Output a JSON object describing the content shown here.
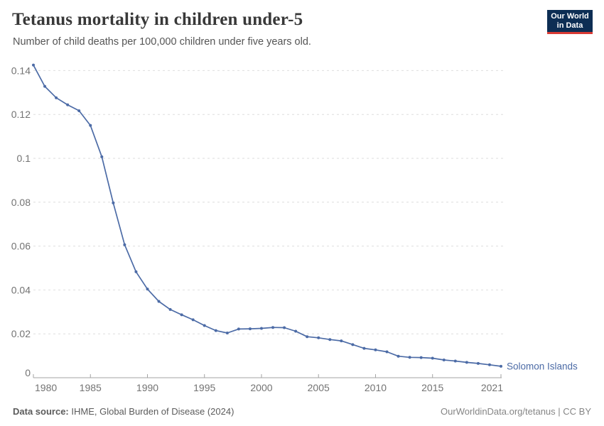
{
  "header": {
    "title": "Tetanus mortality in children under-5",
    "subtitle": "Number of child deaths per 100,000 children under five years old.",
    "logo": {
      "line1": "Our World",
      "line2": "in Data",
      "bg_color": "#0d2e54",
      "accent_color": "#d93a34"
    }
  },
  "chart_data": {
    "type": "line",
    "title": "Tetanus mortality in children under-5",
    "subtitle": "Number of child deaths per 100,000 children under five years old.",
    "xlabel": "",
    "ylabel": "",
    "xlim": [
      1980,
      2021
    ],
    "ylim": [
      0,
      0.145
    ],
    "grid": "horizontal-dashed",
    "legend_position": "end-of-line-label",
    "line_color": "#4c6ba6",
    "grid_color": "#dedede",
    "axis_color": "#a3a3a3",
    "tick_label_color": "#737373",
    "x_ticks": [
      {
        "value": 1980,
        "label": "1980"
      },
      {
        "value": 1985,
        "label": "1985"
      },
      {
        "value": 1990,
        "label": "1990"
      },
      {
        "value": 1995,
        "label": "1995"
      },
      {
        "value": 2000,
        "label": "2000"
      },
      {
        "value": 2005,
        "label": "2005"
      },
      {
        "value": 2010,
        "label": "2010"
      },
      {
        "value": 2015,
        "label": "2015"
      },
      {
        "value": 2021,
        "label": "2021"
      }
    ],
    "y_ticks": [
      {
        "value": 0,
        "label": "0"
      },
      {
        "value": 0.02,
        "label": "0.02"
      },
      {
        "value": 0.04,
        "label": "0.04"
      },
      {
        "value": 0.06,
        "label": "0.06"
      },
      {
        "value": 0.08,
        "label": "0.08"
      },
      {
        "value": 0.1,
        "label": "0.1"
      },
      {
        "value": 0.12,
        "label": "0.12"
      },
      {
        "value": 0.14,
        "label": "0.14"
      }
    ],
    "series": [
      {
        "name": "Solomon Islands",
        "color": "#4c6ba6",
        "x": [
          1980,
          1981,
          1982,
          1983,
          1984,
          1985,
          1986,
          1987,
          1988,
          1989,
          1990,
          1991,
          1992,
          1993,
          1994,
          1995,
          1996,
          1997,
          1998,
          1999,
          2000,
          2001,
          2002,
          2003,
          2004,
          2005,
          2006,
          2007,
          2008,
          2009,
          2010,
          2011,
          2012,
          2013,
          2014,
          2015,
          2016,
          2017,
          2018,
          2019,
          2020,
          2021
        ],
        "values": [
          0.1425,
          0.1328,
          0.1276,
          0.1244,
          0.1217,
          0.115,
          0.1007,
          0.0797,
          0.0606,
          0.0483,
          0.0404,
          0.0348,
          0.0311,
          0.0287,
          0.0264,
          0.0238,
          0.0215,
          0.0204,
          0.0222,
          0.0223,
          0.0225,
          0.0229,
          0.0228,
          0.0212,
          0.0187,
          0.0182,
          0.0174,
          0.0168,
          0.0151,
          0.0134,
          0.0127,
          0.0118,
          0.0098,
          0.0093,
          0.0092,
          0.0089,
          0.0081,
          0.0076,
          0.007,
          0.0065,
          0.0059,
          0.0052
        ]
      }
    ]
  },
  "footer": {
    "source_label": "Data source:",
    "source_text": " IHME, Global Burden of Disease (2024)",
    "credit": "OurWorldinData.org/tetanus | CC BY"
  }
}
